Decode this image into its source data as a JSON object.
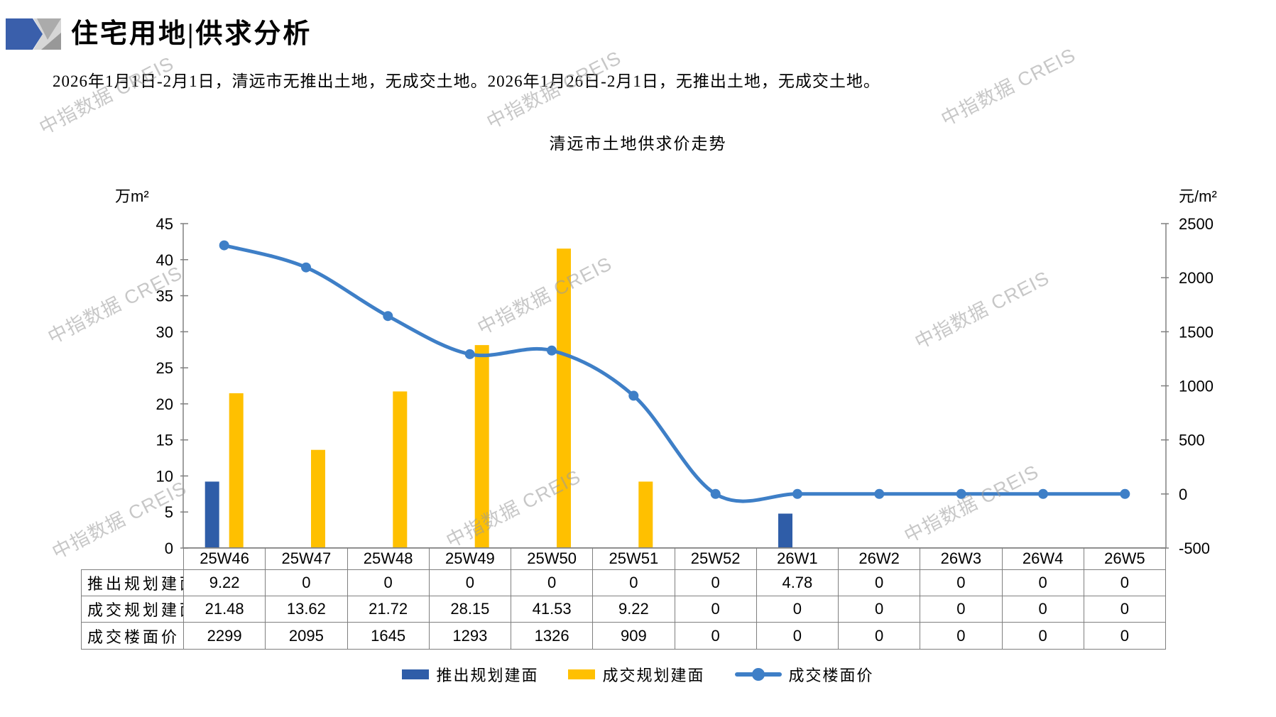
{
  "page": {
    "title": "住宅用地|供求分析",
    "subtitle": "2026年1月1日-2月1日，清远市无推出土地，无成交土地。2026年1月26日-2月1日，无推出土地，无成交土地。",
    "watermark": "中指数据 CREIS"
  },
  "chart_data": {
    "type": "combo",
    "title": "清远市土地供求价走势",
    "categories": [
      "25W46",
      "25W47",
      "25W48",
      "25W49",
      "25W50",
      "25W51",
      "25W52",
      "26W1",
      "26W2",
      "26W3",
      "26W4",
      "26W5"
    ],
    "series": [
      {
        "name": "推出规划建面",
        "type": "bar",
        "axis": "left",
        "color": "#2F5DA8",
        "values": [
          9.22,
          0,
          0,
          0,
          0,
          0,
          0,
          4.78,
          0,
          0,
          0,
          0
        ]
      },
      {
        "name": "成交规划建面",
        "type": "bar",
        "axis": "left",
        "color": "#FFC000",
        "values": [
          21.48,
          13.62,
          21.72,
          28.15,
          41.53,
          9.22,
          0,
          0,
          0,
          0,
          0,
          0
        ]
      },
      {
        "name": "成交楼面价",
        "type": "line",
        "axis": "right",
        "color": "#3E7FC7",
        "values": [
          2299,
          2095,
          1645,
          1293,
          1326,
          909,
          0,
          0,
          0,
          0,
          0,
          0
        ]
      }
    ],
    "left_axis": {
      "unit": "万m²",
      "min": 0,
      "max": 45,
      "step": 5
    },
    "right_axis": {
      "unit": "元/m²",
      "min": -500,
      "max": 2500,
      "step": 500
    },
    "grid": false,
    "legend_position": "bottom"
  },
  "colors": {
    "axis": "#808080",
    "table_border": "#7F7F7F",
    "watermark": "#9B9B9B",
    "logo_blue": "#3A5FAB",
    "logo_gray_light": "#D6D6D6",
    "logo_gray_mid": "#ABABAB"
  }
}
